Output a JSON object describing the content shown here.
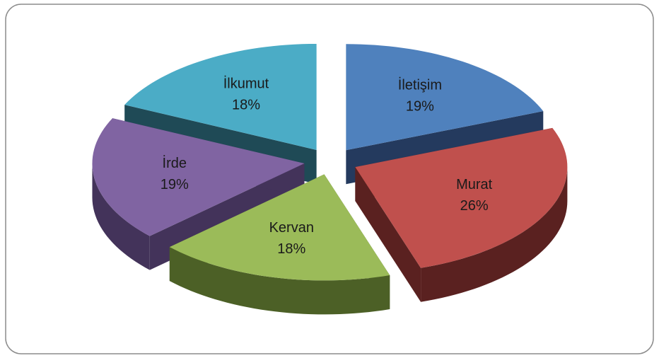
{
  "chart_data": {
    "type": "pie3d",
    "categories": [
      "İletişim",
      "Murat",
      "Kervan",
      "İrde",
      "İlkumut"
    ],
    "values": [
      19,
      26,
      18,
      19,
      18
    ],
    "value_labels": [
      "19%",
      "26%",
      "18%",
      "19%",
      "18%"
    ],
    "colors": [
      "#4f81bd",
      "#c0504d",
      "#9bbb59",
      "#8064a2",
      "#4bacc6"
    ],
    "side_colors": [
      "#243a5e",
      "#5a2120",
      "#4c6026",
      "#43335a",
      "#1f4a56"
    ]
  }
}
